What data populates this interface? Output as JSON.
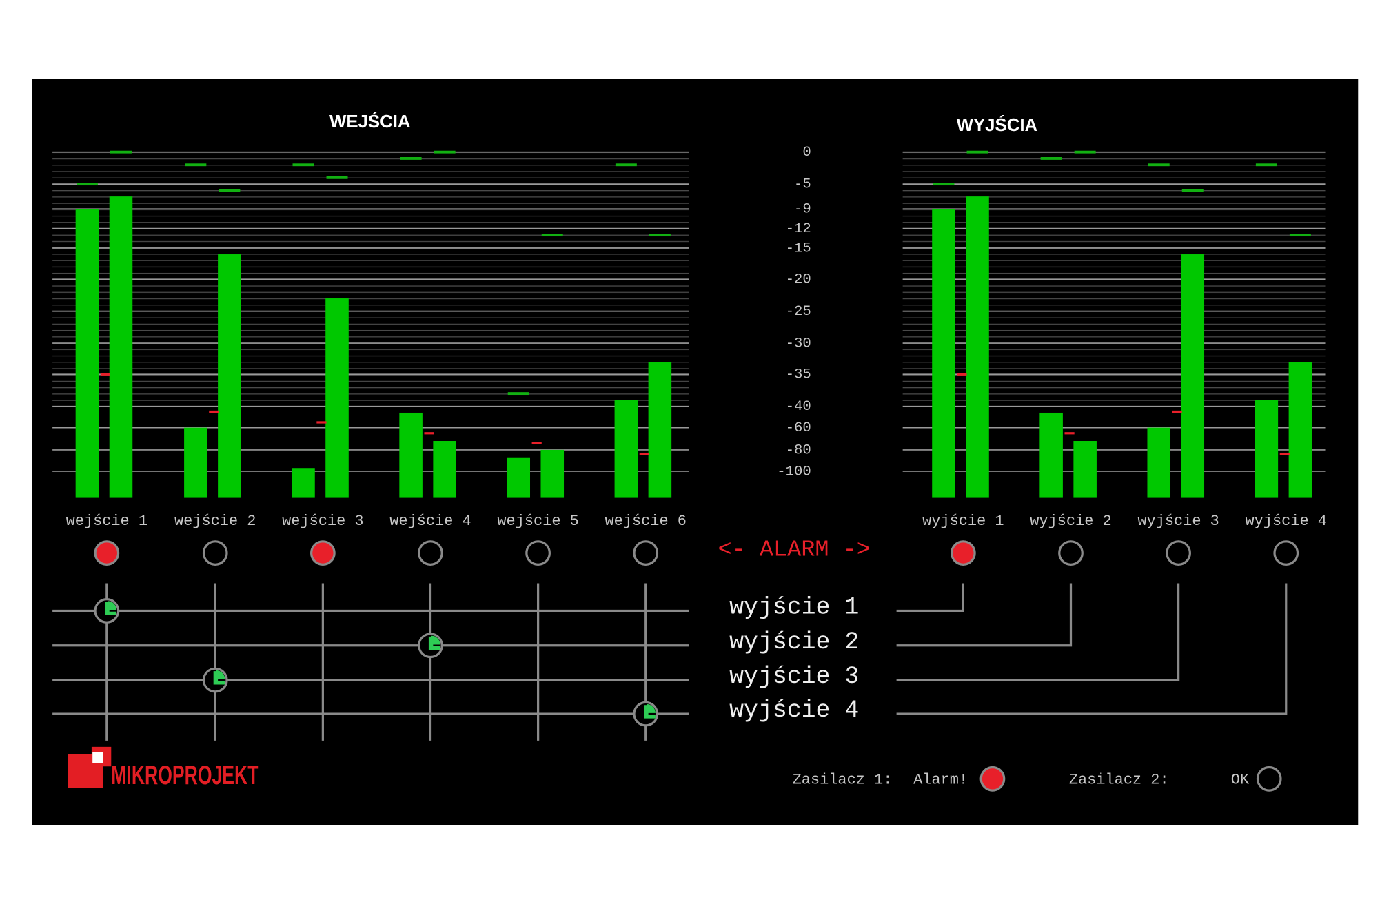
{
  "inputs": {
    "title": "WEJŚCIA",
    "channels": [
      {
        "label": "wejście 1",
        "levels": [
          -9,
          -7
        ],
        "peaks": [
          -5,
          0
        ],
        "min": -35,
        "alarm": true
      },
      {
        "label": "wejście 2",
        "levels": [
          -60,
          -16
        ],
        "peaks": [
          -2,
          -6
        ],
        "min": -45,
        "alarm": false
      },
      {
        "label": "wejście 3",
        "levels": [
          -97,
          -23
        ],
        "peaks": [
          -2,
          -4
        ],
        "min": -55,
        "alarm": true
      },
      {
        "label": "wejście 4",
        "levels": [
          -46,
          -72
        ],
        "peaks": [
          -1,
          0
        ],
        "min": -65,
        "alarm": false
      },
      {
        "label": "wejście 5",
        "levels": [
          -87,
          -80
        ],
        "peaks": [
          -38,
          -13
        ],
        "min": -74,
        "alarm": false
      },
      {
        "label": "wejście 6",
        "levels": [
          -39,
          -33
        ],
        "peaks": [
          -2,
          -13
        ],
        "min": -84,
        "alarm": false
      }
    ]
  },
  "outputs": {
    "title": "WYJŚCIA",
    "channels": [
      {
        "label": "wyjście 1",
        "levels": [
          -9,
          -7
        ],
        "peaks": [
          -5,
          0
        ],
        "min": -35,
        "alarm": true
      },
      {
        "label": "wyjście 2",
        "levels": [
          -46,
          -72
        ],
        "peaks": [
          -1,
          0
        ],
        "min": -65,
        "alarm": false
      },
      {
        "label": "wyjście 3",
        "levels": [
          -60,
          -16
        ],
        "peaks": [
          -2,
          -6
        ],
        "min": -45,
        "alarm": false
      },
      {
        "label": "wyjście 4",
        "levels": [
          -39,
          -33
        ],
        "peaks": [
          -2,
          -13
        ],
        "min": -84,
        "alarm": false
      }
    ]
  },
  "scale": {
    "ticks": [
      0,
      -5,
      -9,
      -12,
      -15,
      -20,
      -25,
      -30,
      -35,
      -40,
      -60,
      -80,
      -100
    ]
  },
  "alarm_label": "<- ALARM ->",
  "routing": {
    "rows": [
      {
        "label": "wyjście 1",
        "sources": [
          true,
          false,
          false,
          false,
          false,
          false
        ]
      },
      {
        "label": "wyjście 2",
        "sources": [
          false,
          false,
          false,
          true,
          false,
          false
        ]
      },
      {
        "label": "wyjście 3",
        "sources": [
          false,
          true,
          false,
          false,
          false,
          false
        ]
      },
      {
        "label": "wyjście 4",
        "sources": [
          false,
          false,
          false,
          false,
          false,
          true
        ]
      }
    ]
  },
  "power": [
    {
      "label": "Zasilacz 1:",
      "status": "Alarm!",
      "alarm": true
    },
    {
      "label": "Zasilacz 2:",
      "status": "OK",
      "alarm": false
    }
  ],
  "logo": "MIKROPROJEKT"
}
